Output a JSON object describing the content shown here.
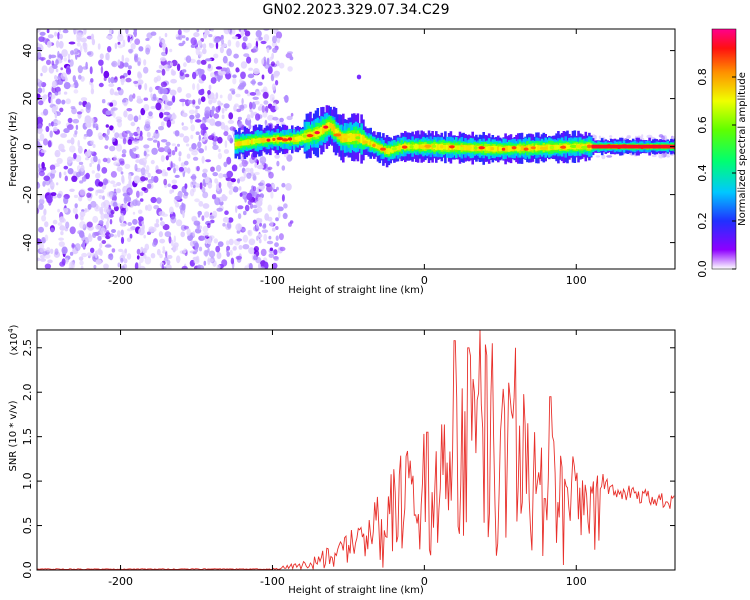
{
  "title": "GN02.2023.329.07.34.C29",
  "chart_data": [
    {
      "type": "heatmap",
      "xlabel": "Height of straight line (km)",
      "ylabel": "Frequency (Hz)",
      "xlim": [
        -255,
        165
      ],
      "ylim": [
        -51,
        49
      ],
      "xticks": [
        -200,
        -100,
        0,
        100
      ],
      "xtick_labels": [
        "-200",
        "-100",
        "0",
        "100"
      ],
      "yticks": [
        40,
        20,
        0,
        -20,
        -40
      ],
      "ytick_labels": [
        "40",
        "20",
        "0",
        "-20",
        "-40"
      ],
      "colorbar": {
        "label": "Normalized spectral amplitude",
        "range": [
          0,
          1
        ],
        "ticks": [
          0.0,
          0.2,
          0.4,
          0.6,
          0.8
        ],
        "tick_labels": [
          "0.0",
          "0.2",
          "0.4",
          "0.6",
          "0.8"
        ]
      },
      "noise_region_x": [
        -255,
        -97
      ],
      "ridge": [
        {
          "x": -125,
          "f": 1.0
        },
        {
          "x": -110,
          "f": 2.5
        },
        {
          "x": -100,
          "f": 3.0
        },
        {
          "x": -85,
          "f": 3.0
        },
        {
          "x": -70,
          "f": 6.0
        },
        {
          "x": -63,
          "f": 9.0
        },
        {
          "x": -55,
          "f": 3.5
        },
        {
          "x": -45,
          "f": 4.0
        },
        {
          "x": -35,
          "f": 1.0
        },
        {
          "x": -25,
          "f": -2.0
        },
        {
          "x": -15,
          "f": 0.0
        },
        {
          "x": 0,
          "f": 0.0
        },
        {
          "x": 50,
          "f": -1.0
        },
        {
          "x": 100,
          "f": 0.0
        },
        {
          "x": 165,
          "f": 0.0
        }
      ],
      "spike": {
        "x": -43,
        "f": 29
      }
    },
    {
      "type": "line",
      "xlabel": "Height of straight line (km)",
      "ylabel": "SNR (10 * v/v)",
      "scale_label": "(x10",
      "scale_exponent": "4",
      "scale_close": ")",
      "xlim": [
        -255,
        165
      ],
      "ylim": [
        0,
        2.7
      ],
      "xticks": [
        -200,
        -100,
        0,
        100
      ],
      "xtick_labels": [
        "-200",
        "-100",
        "0",
        "100"
      ],
      "yticks": [
        0.0,
        0.5,
        1.0,
        1.5,
        2.0,
        2.5
      ],
      "ytick_labels": [
        "0.0",
        "0.5",
        "1.0",
        "1.5",
        "2.0",
        "2.5"
      ],
      "color": "#e8302b",
      "envelope": [
        {
          "x": -255,
          "y": 0.01
        },
        {
          "x": -120,
          "y": 0.01
        },
        {
          "x": -100,
          "y": 0.02
        },
        {
          "x": -75,
          "y": 0.12
        },
        {
          "x": -60,
          "y": 0.3
        },
        {
          "x": -45,
          "y": 0.5
        },
        {
          "x": -35,
          "y": 0.9
        },
        {
          "x": -20,
          "y": 1.25
        },
        {
          "x": 0,
          "y": 1.55
        },
        {
          "x": 15,
          "y": 1.9
        },
        {
          "x": 25,
          "y": 2.3
        },
        {
          "x": 38,
          "y": 2.65
        },
        {
          "x": 55,
          "y": 2.35
        },
        {
          "x": 75,
          "y": 1.85
        },
        {
          "x": 95,
          "y": 1.5
        },
        {
          "x": 110,
          "y": 1.15
        },
        {
          "x": 125,
          "y": 0.98
        },
        {
          "x": 140,
          "y": 0.92
        },
        {
          "x": 165,
          "y": 0.82
        }
      ],
      "peaks": [
        {
          "x": 20,
          "y": 2.58
        },
        {
          "x": 29,
          "y": 2.5
        },
        {
          "x": 37,
          "y": 2.7
        },
        {
          "x": 45,
          "y": 2.55
        },
        {
          "x": 60,
          "y": 2.5
        },
        {
          "x": 2,
          "y": 1.55
        },
        {
          "x": -12,
          "y": 1.28
        },
        {
          "x": 83,
          "y": 1.95
        }
      ]
    }
  ]
}
